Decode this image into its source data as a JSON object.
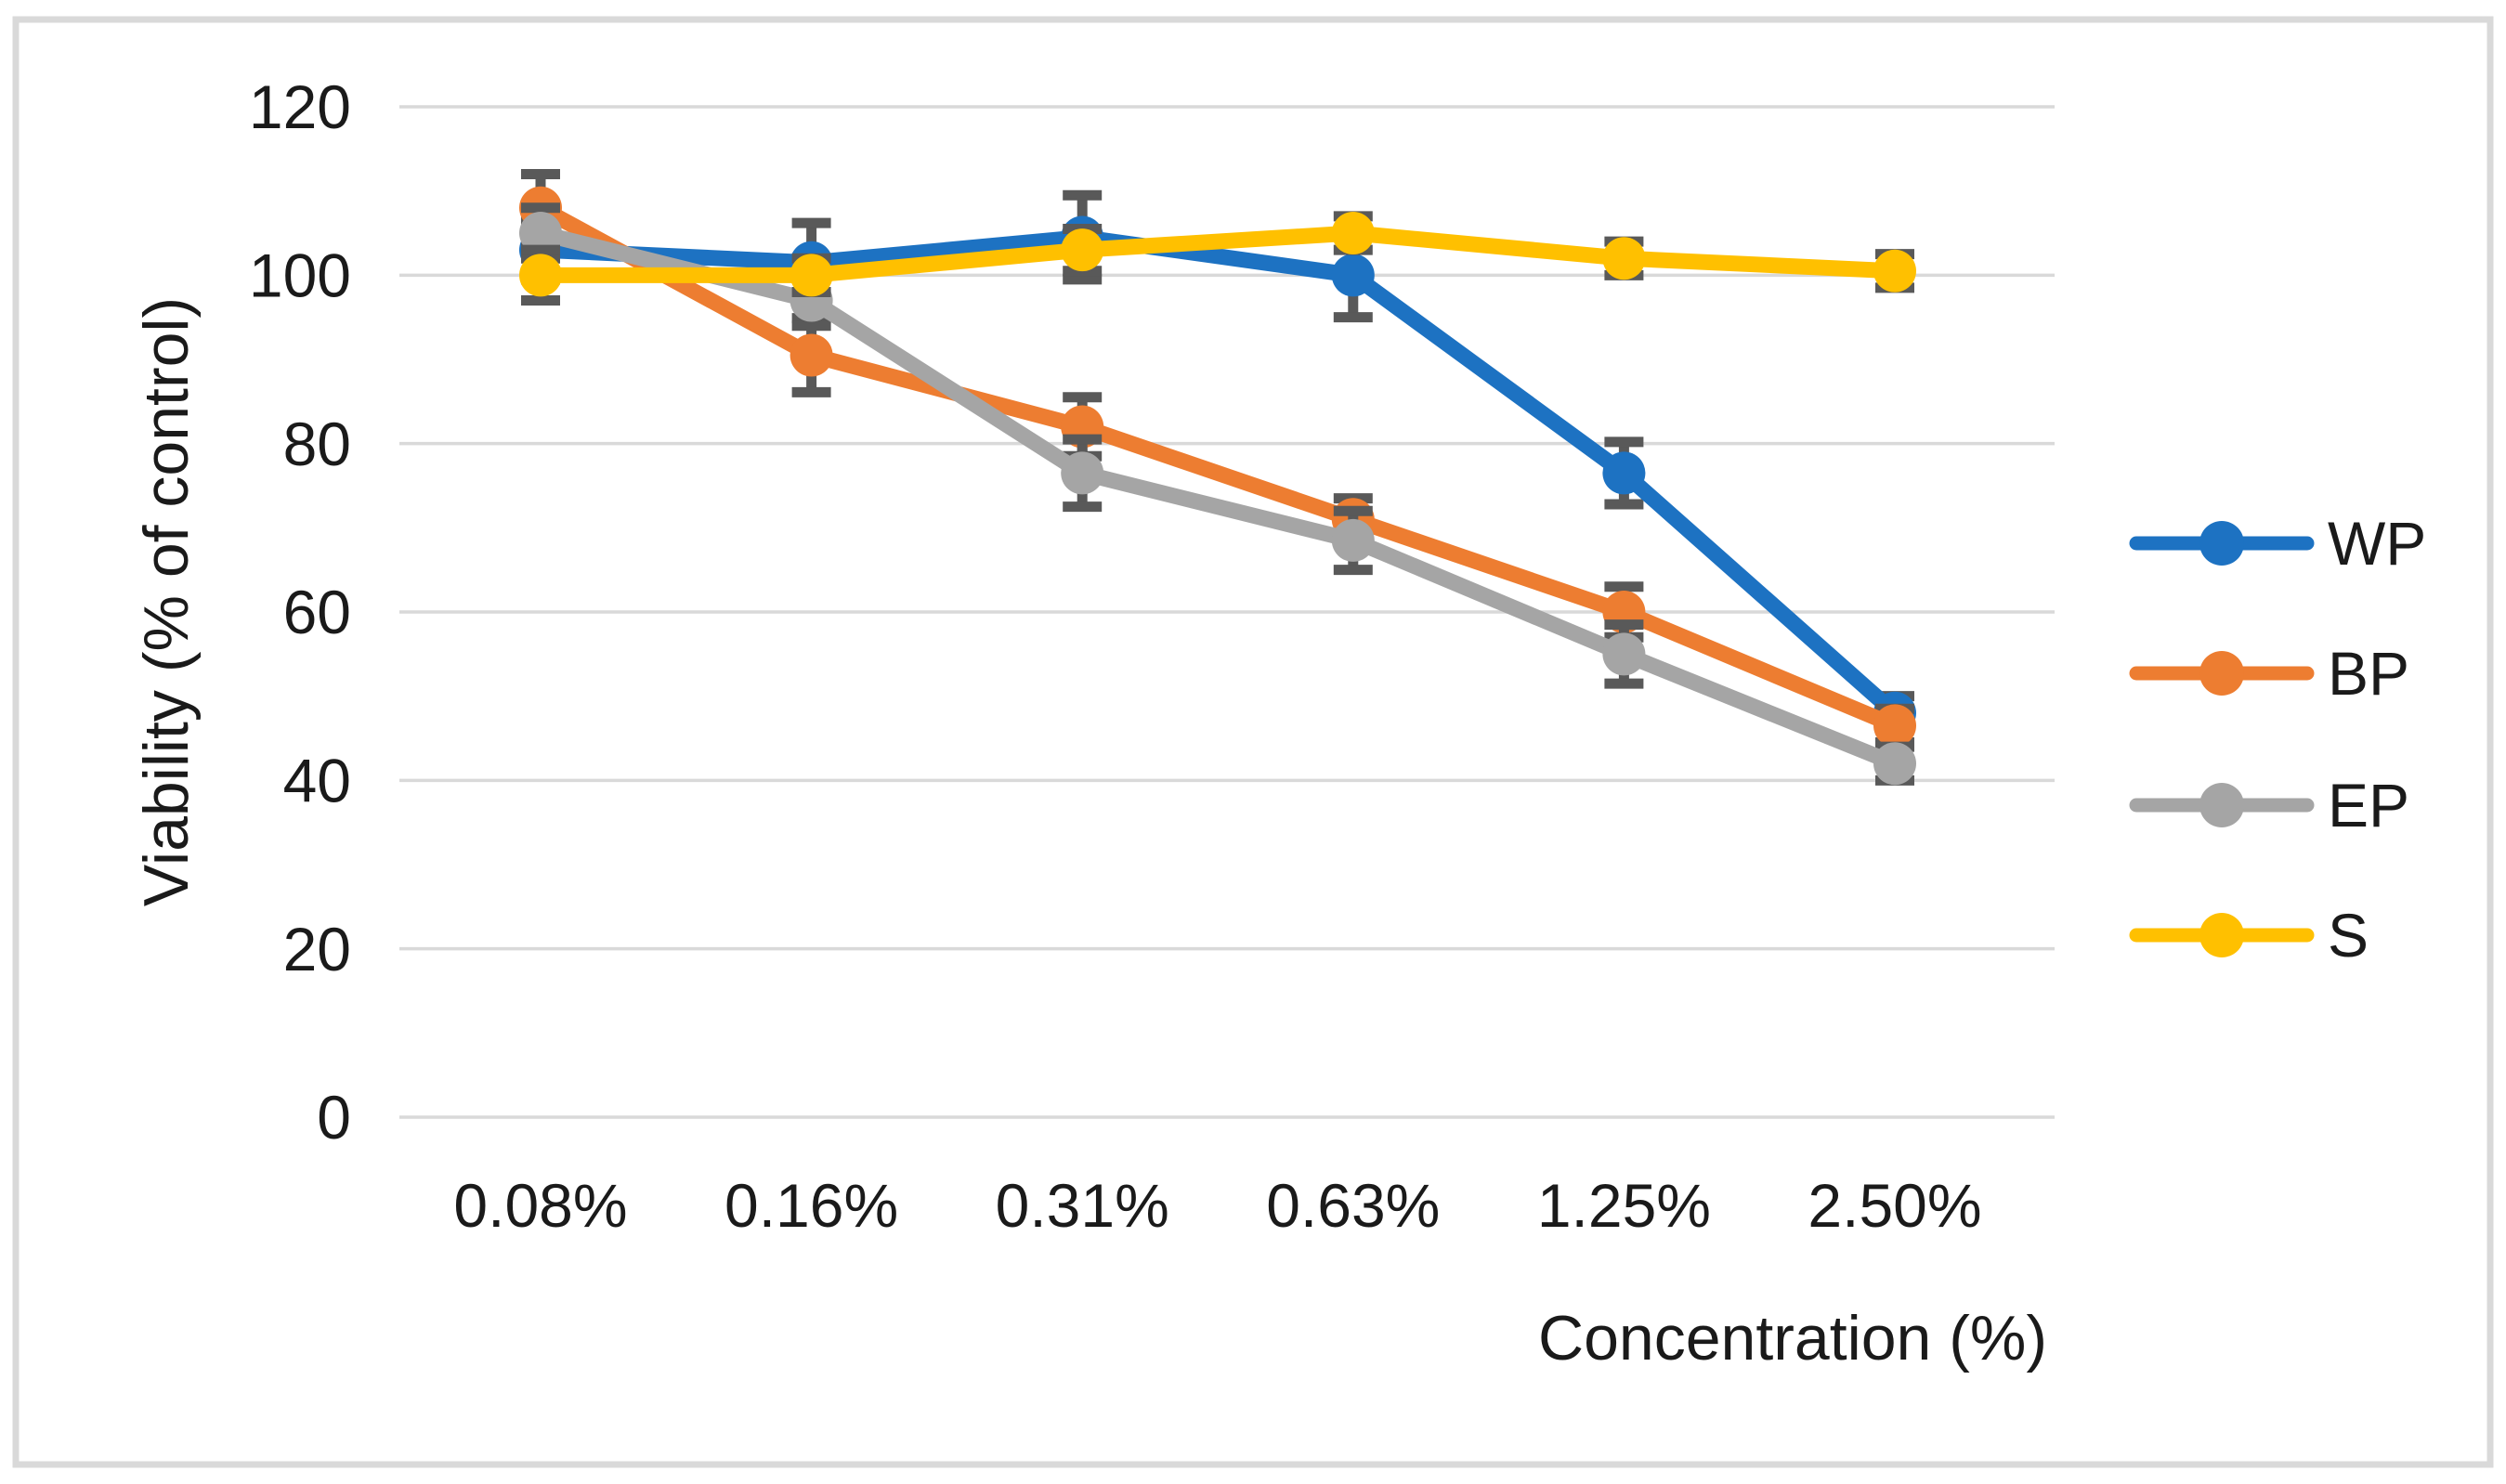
{
  "figure": {
    "background": "#FFFFFF",
    "border_color": "#D9D9D9",
    "text_color": "#1A1A1A"
  },
  "chart_data": {
    "type": "line",
    "title": "",
    "xlabel": "Concentration (%)",
    "ylabel": "Viability (% of control)",
    "categories": [
      "0.08%",
      "0.16%",
      "0.31%",
      "0.63%",
      "1.25%",
      "2.50%"
    ],
    "yticks": [
      0,
      20,
      40,
      60,
      80,
      100,
      120
    ],
    "ylim": [
      0,
      120
    ],
    "grid": "horizontal",
    "gridline_color": "#D9D9D9",
    "errorbar_color": "#595959",
    "legend_position": "right",
    "series": [
      {
        "name": "WP",
        "color": "#1D72C2",
        "values": [
          103,
          101.5,
          104.5,
          100,
          76.5,
          48
        ],
        "errors": [
          3.5,
          4.7,
          5,
          5,
          3.7,
          2
        ]
      },
      {
        "name": "BP",
        "color": "#ED7D31",
        "values": [
          108,
          90.5,
          82,
          71,
          60,
          46.5
        ],
        "errors": [
          4,
          4.4,
          3.5,
          2.5,
          3,
          2
        ]
      },
      {
        "name": "EP",
        "color": "#A5A5A5",
        "values": [
          105,
          97,
          76.5,
          68.5,
          55,
          42
        ],
        "errors": [
          3,
          3,
          4,
          3.5,
          3.5,
          2
        ]
      },
      {
        "name": "S",
        "color": "#FFC000",
        "values": [
          100,
          100,
          103,
          105,
          102,
          100.5
        ],
        "errors": [
          3,
          2,
          2.5,
          2,
          2,
          2
        ]
      }
    ]
  }
}
